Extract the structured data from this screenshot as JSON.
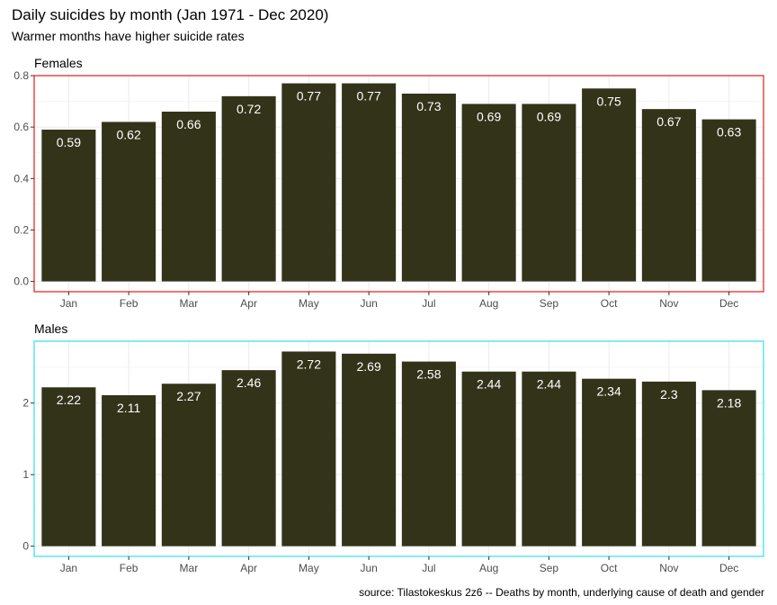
{
  "title": "Daily suicides by month (Jan 1971 - Dec 2020)",
  "subtitle": "Warmer months have higher suicide rates",
  "caption": "source: Tilastokeskus 2z6 -- Deaths by month, underlying cause of death and gender",
  "bar_color": "#33331a",
  "chart_data": [
    {
      "type": "bar",
      "facet": "Females",
      "border_color": "#e31a1c",
      "categories": [
        "Jan",
        "Feb",
        "Mar",
        "Apr",
        "May",
        "Jun",
        "Jul",
        "Aug",
        "Sep",
        "Oct",
        "Nov",
        "Dec"
      ],
      "values": [
        0.59,
        0.62,
        0.66,
        0.72,
        0.77,
        0.77,
        0.73,
        0.69,
        0.69,
        0.75,
        0.67,
        0.63
      ],
      "data_labels": [
        "0.59",
        "0.62",
        "0.66",
        "0.72",
        "0.77",
        "0.77",
        "0.73",
        "0.69",
        "0.69",
        "0.75",
        "0.67",
        "0.63"
      ],
      "ylim": [
        0,
        0.8
      ],
      "yticks": [
        0.0,
        0.2,
        0.4,
        0.6,
        0.8
      ],
      "ytick_labels": [
        "0.0",
        "0.2",
        "0.4",
        "0.6",
        "0.8"
      ],
      "grid": true
    },
    {
      "type": "bar",
      "facet": "Males",
      "border_color": "#33dfe8",
      "categories": [
        "Jan",
        "Feb",
        "Mar",
        "Apr",
        "May",
        "Jun",
        "Jul",
        "Aug",
        "Sep",
        "Oct",
        "Nov",
        "Dec"
      ],
      "values": [
        2.22,
        2.11,
        2.27,
        2.46,
        2.72,
        2.69,
        2.58,
        2.44,
        2.44,
        2.34,
        2.3,
        2.18
      ],
      "data_labels": [
        "2.22",
        "2.11",
        "2.27",
        "2.46",
        "2.72",
        "2.69",
        "2.58",
        "2.44",
        "2.44",
        "2.34",
        "2.3",
        "2.18"
      ],
      "ylim": [
        0,
        2.85
      ],
      "yticks": [
        0,
        1,
        2
      ],
      "ytick_labels": [
        "0",
        "1",
        "2"
      ],
      "grid": true
    }
  ]
}
